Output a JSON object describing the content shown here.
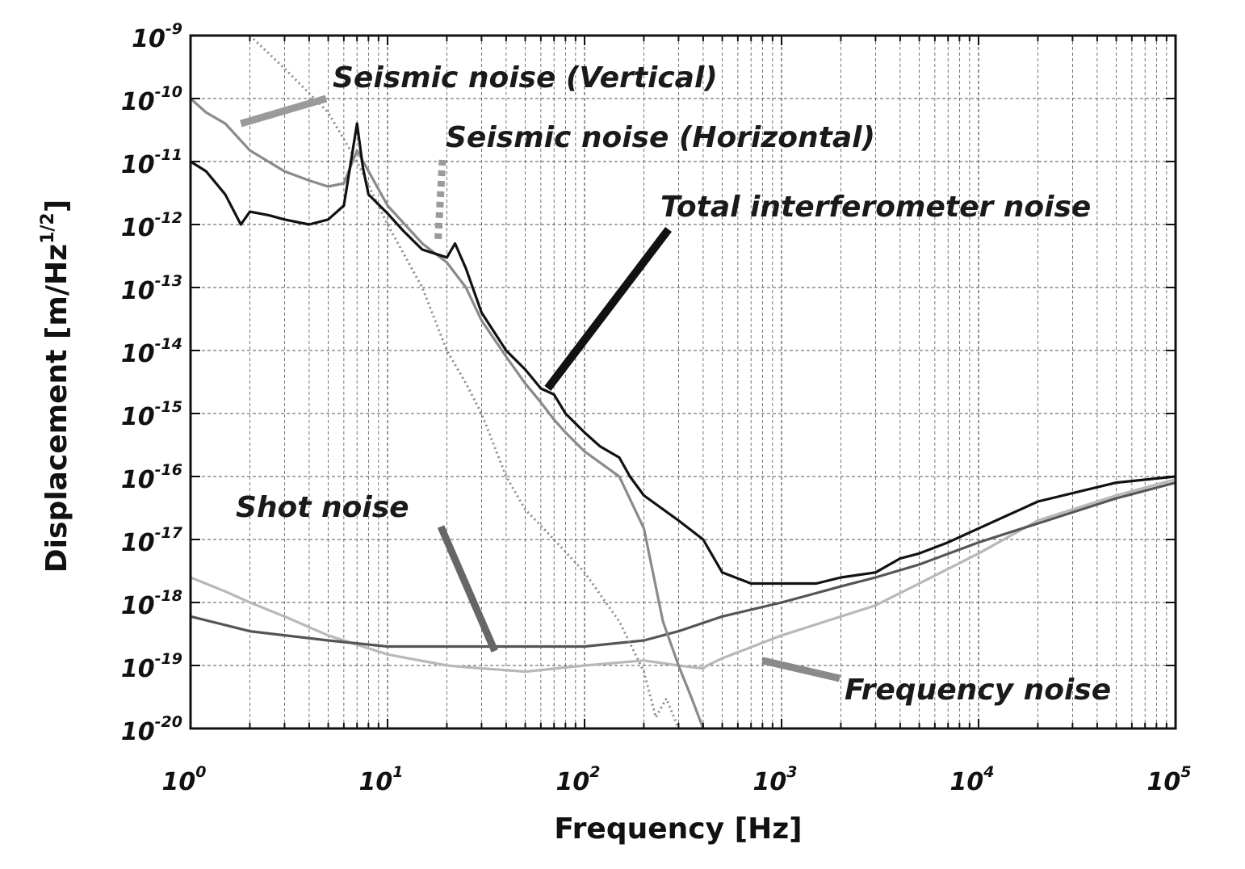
{
  "chart_data": {
    "type": "line",
    "xlabel": "Frequency [Hz]",
    "ylabel": {
      "base": "Displacement [m/Hz",
      "exponent": "1/2",
      "suffix": "]"
    },
    "xscale": "log",
    "yscale": "log",
    "xlim": [
      1,
      100000
    ],
    "ylim": [
      1e-20,
      1e-09
    ],
    "grid": true,
    "x_ticks": [
      {
        "base": "10",
        "exp": "0"
      },
      {
        "base": "10",
        "exp": "1"
      },
      {
        "base": "10",
        "exp": "2"
      },
      {
        "base": "10",
        "exp": "3"
      },
      {
        "base": "10",
        "exp": "4"
      },
      {
        "base": "10",
        "exp": "5"
      }
    ],
    "y_ticks": [
      {
        "base": "10",
        "exp": "-9"
      },
      {
        "base": "10",
        "exp": "-10"
      },
      {
        "base": "10",
        "exp": "-11"
      },
      {
        "base": "10",
        "exp": "-12"
      },
      {
        "base": "10",
        "exp": "-13"
      },
      {
        "base": "10",
        "exp": "-14"
      },
      {
        "base": "10",
        "exp": "-15"
      },
      {
        "base": "10",
        "exp": "-16"
      },
      {
        "base": "10",
        "exp": "-17"
      },
      {
        "base": "10",
        "exp": "-18"
      },
      {
        "base": "10",
        "exp": "-19"
      },
      {
        "base": "10",
        "exp": "-20"
      }
    ],
    "annotations": [
      {
        "text": "Seismic noise (Vertical)",
        "series": "seismic_vertical"
      },
      {
        "text": "Seismic noise (Horizontal)",
        "series": "seismic_horizontal"
      },
      {
        "text": "Total interferometer noise",
        "series": "total"
      },
      {
        "text": "Shot noise",
        "series": "shot"
      },
      {
        "text": "Frequency noise",
        "series": "frequency"
      }
    ],
    "series": [
      {
        "key": "total",
        "color": "#111111",
        "style": "solid",
        "x": [
          1,
          1.2,
          1.5,
          1.8,
          2,
          2.5,
          3,
          4,
          5,
          6,
          7,
          7.5,
          8,
          10,
          12,
          15,
          20,
          22,
          25,
          30,
          40,
          50,
          60,
          70,
          80,
          100,
          120,
          150,
          170,
          200,
          300,
          400,
          500,
          700,
          1000,
          1500,
          2000,
          3000,
          4000,
          5000,
          7000,
          10000,
          20000,
          50000,
          100000
        ],
        "y": [
          1e-11,
          7e-12,
          3e-12,
          1e-12,
          1.6e-12,
          1.4e-12,
          1.2e-12,
          1e-12,
          1.2e-12,
          2e-12,
          4e-11,
          8e-12,
          3e-12,
          1.5e-12,
          8e-13,
          4e-13,
          3e-13,
          5e-13,
          2e-13,
          4e-14,
          1e-14,
          5e-15,
          2.5e-15,
          2e-15,
          1e-15,
          5e-16,
          3e-16,
          2e-16,
          1e-16,
          5e-17,
          2e-17,
          1e-17,
          3e-18,
          2e-18,
          2e-18,
          2e-18,
          2.5e-18,
          3e-18,
          5e-18,
          6e-18,
          9e-18,
          1.5e-17,
          4e-17,
          8e-17,
          1e-16
        ]
      },
      {
        "key": "seismic_vertical",
        "color": "#8a8a8a",
        "style": "solid",
        "x": [
          1,
          1.2,
          1.5,
          2,
          3,
          4,
          5,
          6,
          7,
          10,
          15,
          20,
          25,
          30,
          40,
          50,
          60,
          70,
          80,
          100,
          150,
          200,
          250,
          300,
          350,
          400
        ],
        "y": [
          1e-10,
          6e-11,
          4e-11,
          1.5e-11,
          7e-12,
          5e-12,
          4e-12,
          4.5e-12,
          1.5e-11,
          2e-12,
          5e-13,
          2.5e-13,
          1e-13,
          3e-14,
          8e-15,
          3e-15,
          1.5e-15,
          8e-16,
          5e-16,
          2.5e-16,
          1e-16,
          1.5e-17,
          5e-19,
          1e-19,
          3e-20,
          1e-20
        ]
      },
      {
        "key": "seismic_horizontal",
        "color": "#8a8a8a",
        "style": "dotted",
        "x": [
          2,
          3,
          5,
          7,
          10,
          15,
          20,
          25,
          30,
          40,
          50,
          70,
          100,
          150,
          200,
          230,
          260,
          300
        ],
        "y": [
          1e-09,
          3e-10,
          6e-11,
          1e-11,
          1e-12,
          1e-13,
          1e-14,
          3e-15,
          1e-15,
          1e-16,
          3e-17,
          1e-17,
          3e-18,
          5e-19,
          8e-20,
          1.5e-20,
          3e-20,
          1e-20
        ]
      },
      {
        "key": "shot",
        "color": "#555555",
        "style": "solid",
        "x": [
          1,
          2,
          5,
          10,
          20,
          50,
          100,
          200,
          300,
          500,
          1000,
          2000,
          3000,
          5000,
          10000,
          20000,
          50000,
          100000
        ],
        "y": [
          6e-19,
          3.5e-19,
          2.5e-19,
          2e-19,
          2e-19,
          2e-19,
          2e-19,
          2.5e-19,
          3.5e-19,
          6e-19,
          1e-18,
          1.8e-18,
          2.5e-18,
          4e-18,
          9e-18,
          1.8e-17,
          4.5e-17,
          8e-17
        ]
      },
      {
        "key": "frequency",
        "color": "#b8b8b8",
        "style": "solid",
        "x": [
          1,
          1.5,
          2,
          3,
          5,
          10,
          20,
          30,
          50,
          100,
          200,
          300,
          400,
          420,
          500,
          1000,
          2000,
          3000,
          5000,
          10000,
          20000,
          50000,
          100000
        ],
        "y": [
          2.5e-18,
          1.5e-18,
          1e-18,
          6e-19,
          3e-19,
          1.5e-19,
          1e-19,
          9e-20,
          8e-20,
          1e-19,
          1.2e-19,
          1e-19,
          9e-20,
          1e-19,
          1.3e-19,
          3e-19,
          6e-19,
          9e-19,
          2e-18,
          6e-18,
          2e-17,
          5e-17,
          9e-17
        ]
      }
    ]
  }
}
